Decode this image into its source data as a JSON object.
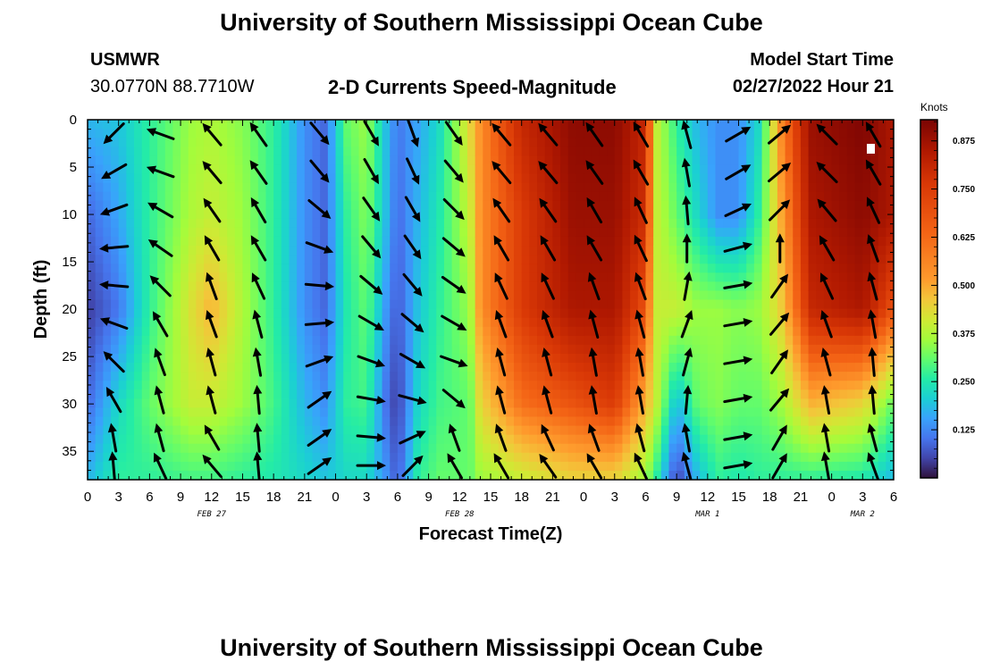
{
  "header": {
    "title": "University of Southern Mississippi Ocean Cube",
    "station": "USMWR",
    "coords": "30.0770N  88.7710W",
    "product": "2-D Currents Speed-Magnitude",
    "model_label": "Model Start Time",
    "model_time": "02/27/2022 Hour 21",
    "footer_title": "University of Southern Mississippi Ocean Cube"
  },
  "colors": {
    "arrow": "#000000",
    "highlight": "#ffffff"
  },
  "chart_data": {
    "type": "heatmap",
    "title": "2-D Currents Speed-Magnitude",
    "xlabel": "Forecast Time(Z)",
    "ylabel": "Depth (ft)",
    "x_range_hours": [
      0,
      78
    ],
    "y_range_ft": [
      0,
      38
    ],
    "y_reversed": true,
    "x_ticks": [
      0,
      3,
      6,
      9,
      12,
      15,
      18,
      21,
      24,
      27,
      30,
      33,
      36,
      39,
      42,
      45,
      48,
      51,
      54,
      57,
      60,
      63,
      66,
      69,
      72,
      75,
      78
    ],
    "x_tick_labels": [
      "0",
      "3",
      "6",
      "9",
      "12",
      "15",
      "18",
      "21",
      "0",
      "3",
      "6",
      "9",
      "12",
      "15",
      "18",
      "21",
      "0",
      "3",
      "6",
      "9",
      "12",
      "15",
      "18",
      "21",
      "0",
      "3",
      "6"
    ],
    "y_ticks": [
      0,
      5,
      10,
      15,
      20,
      25,
      30,
      35
    ],
    "y_tick_labels": [
      "0",
      "5",
      "10",
      "15",
      "20",
      "25",
      "30",
      "35"
    ],
    "date_labels": [
      {
        "hour": 12,
        "text": "FEB 27"
      },
      {
        "hour": 36,
        "text": "FEB 28"
      },
      {
        "hour": 60,
        "text": "MAR 1"
      },
      {
        "hour": 75,
        "text": "MAR 2"
      }
    ],
    "colorbar": {
      "title": "Knots",
      "min": 0.0,
      "max": 0.93,
      "ticks": [
        0.125,
        0.25,
        0.375,
        0.5,
        0.625,
        0.75,
        0.875
      ],
      "tick_labels": [
        "0.125",
        "0.250",
        "0.375",
        "0.500",
        "0.625",
        "0.750",
        "0.875"
      ]
    },
    "speed_keyframes": [
      {
        "hour": 0,
        "speeds": [
          0.2,
          0.1,
          0.05,
          0.1,
          0.2
        ]
      },
      {
        "hour": 3,
        "speeds": [
          0.22,
          0.18,
          0.12,
          0.25,
          0.3
        ]
      },
      {
        "hour": 6,
        "speeds": [
          0.3,
          0.3,
          0.3,
          0.35,
          0.3
        ]
      },
      {
        "hour": 10,
        "speeds": [
          0.4,
          0.42,
          0.48,
          0.45,
          0.32
        ]
      },
      {
        "hour": 12,
        "speeds": [
          0.42,
          0.45,
          0.55,
          0.45,
          0.32
        ]
      },
      {
        "hour": 15,
        "speeds": [
          0.38,
          0.4,
          0.42,
          0.4,
          0.3
        ]
      },
      {
        "hour": 18,
        "speeds": [
          0.3,
          0.3,
          0.3,
          0.32,
          0.28
        ]
      },
      {
        "hour": 21,
        "speeds": [
          0.15,
          0.15,
          0.15,
          0.2,
          0.25
        ]
      },
      {
        "hour": 23,
        "speeds": [
          0.1,
          0.1,
          0.1,
          0.15,
          0.22
        ]
      },
      {
        "hour": 25,
        "speeds": [
          0.35,
          0.3,
          0.28,
          0.3,
          0.25
        ]
      },
      {
        "hour": 27,
        "speeds": [
          0.4,
          0.38,
          0.35,
          0.32,
          0.25
        ]
      },
      {
        "hour": 29,
        "speeds": [
          0.2,
          0.2,
          0.15,
          0.1,
          0.15
        ]
      },
      {
        "hour": 30,
        "speeds": [
          0.12,
          0.1,
          0.08,
          0.05,
          0.08
        ]
      },
      {
        "hour": 32,
        "speeds": [
          0.18,
          0.2,
          0.22,
          0.25,
          0.3
        ]
      },
      {
        "hour": 34,
        "speeds": [
          0.25,
          0.28,
          0.3,
          0.32,
          0.35
        ]
      },
      {
        "hour": 37,
        "speeds": [
          0.5,
          0.45,
          0.4,
          0.35,
          0.35
        ]
      },
      {
        "hour": 38,
        "speeds": [
          0.6,
          0.6,
          0.6,
          0.5,
          0.4
        ]
      },
      {
        "hour": 42,
        "speeds": [
          0.8,
          0.75,
          0.75,
          0.65,
          0.45
        ]
      },
      {
        "hour": 47,
        "speeds": [
          0.9,
          0.88,
          0.85,
          0.7,
          0.5
        ]
      },
      {
        "hour": 51,
        "speeds": [
          0.9,
          0.88,
          0.85,
          0.75,
          0.5
        ]
      },
      {
        "hour": 54,
        "speeds": [
          0.8,
          0.78,
          0.7,
          0.55,
          0.4
        ]
      },
      {
        "hour": 55,
        "speeds": [
          0.45,
          0.45,
          0.45,
          0.45,
          0.3
        ]
      },
      {
        "hour": 57,
        "speeds": [
          0.3,
          0.35,
          0.45,
          0.2,
          0.05
        ]
      },
      {
        "hour": 59,
        "speeds": [
          0.2,
          0.25,
          0.4,
          0.35,
          0.2
        ]
      },
      {
        "hour": 61,
        "speeds": [
          0.15,
          0.15,
          0.4,
          0.38,
          0.3
        ]
      },
      {
        "hour": 63,
        "speeds": [
          0.15,
          0.15,
          0.38,
          0.35,
          0.28
        ]
      },
      {
        "hour": 65,
        "speeds": [
          0.25,
          0.3,
          0.4,
          0.35,
          0.3
        ]
      },
      {
        "hour": 67,
        "speeds": [
          0.6,
          0.55,
          0.5,
          0.4,
          0.3
        ]
      },
      {
        "hour": 70,
        "speeds": [
          0.88,
          0.85,
          0.8,
          0.55,
          0.3
        ]
      },
      {
        "hour": 75,
        "speeds": [
          0.92,
          0.9,
          0.85,
          0.5,
          0.28
        ]
      },
      {
        "hour": 78,
        "speeds": [
          0.85,
          0.85,
          0.7,
          0.35,
          0.2
        ]
      }
    ],
    "speed_depths_ft": [
      0,
      10,
      20,
      30,
      38
    ],
    "vector_columns": [
      {
        "hour": 2.5,
        "directions_deg": [
          225,
          240,
          250,
          265,
          275,
          290,
          315,
          330,
          350,
          355
        ]
      },
      {
        "hour": 7,
        "directions_deg": [
          290,
          290,
          300,
          305,
          315,
          330,
          340,
          345,
          345,
          335
        ]
      },
      {
        "hour": 12,
        "directions_deg": [
          320,
          320,
          325,
          330,
          340,
          340,
          345,
          345,
          330,
          320
        ]
      },
      {
        "hour": 16.5,
        "directions_deg": [
          325,
          325,
          330,
          330,
          335,
          345,
          350,
          355,
          355,
          355
        ]
      },
      {
        "hour": 22.5,
        "directions_deg": [
          140,
          140,
          130,
          110,
          95,
          85,
          70,
          55,
          55,
          55
        ]
      },
      {
        "hour": 27.5,
        "directions_deg": [
          150,
          150,
          145,
          140,
          130,
          120,
          110,
          100,
          95,
          90
        ]
      },
      {
        "hour": 31.5,
        "directions_deg": [
          160,
          155,
          150,
          145,
          140,
          130,
          120,
          105,
          65,
          45
        ]
      },
      {
        "hour": 35.5,
        "directions_deg": [
          145,
          140,
          135,
          130,
          125,
          120,
          110,
          130,
          340,
          330
        ]
      },
      {
        "hour": 40,
        "directions_deg": [
          320,
          320,
          325,
          330,
          335,
          340,
          345,
          345,
          340,
          330
        ]
      },
      {
        "hour": 44.5,
        "directions_deg": [
          320,
          320,
          325,
          330,
          335,
          340,
          345,
          345,
          335,
          325
        ]
      },
      {
        "hour": 49,
        "directions_deg": [
          325,
          325,
          330,
          330,
          340,
          345,
          350,
          350,
          340,
          330
        ]
      },
      {
        "hour": 53.5,
        "directions_deg": [
          330,
          330,
          335,
          335,
          340,
          345,
          350,
          350,
          345,
          335
        ]
      },
      {
        "hour": 58,
        "directions_deg": [
          345,
          350,
          355,
          0,
          10,
          20,
          15,
          5,
          350,
          345
        ]
      },
      {
        "hour": 63,
        "directions_deg": [
          60,
          60,
          65,
          75,
          80,
          80,
          80,
          80,
          80,
          80
        ]
      },
      {
        "hour": 67,
        "directions_deg": [
          50,
          50,
          45,
          0,
          35,
          40,
          35,
          40,
          30,
          30
        ]
      },
      {
        "hour": 71.5,
        "directions_deg": [
          315,
          315,
          320,
          330,
          335,
          340,
          345,
          350,
          350,
          350
        ]
      },
      {
        "hour": 76,
        "directions_deg": [
          330,
          330,
          335,
          340,
          345,
          350,
          355,
          355,
          345,
          340
        ]
      }
    ],
    "vector_depths_ft": [
      1.5,
      5.5,
      9.5,
      13.5,
      17.5,
      21.5,
      25.5,
      29.5,
      33.5,
      36.5
    ]
  }
}
